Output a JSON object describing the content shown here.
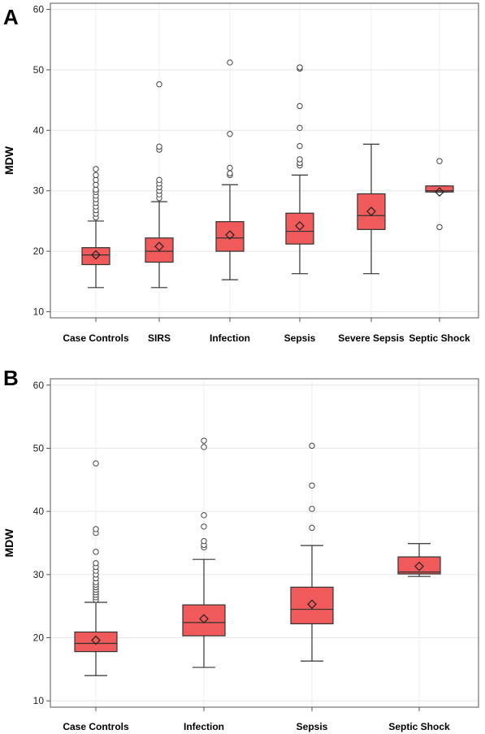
{
  "chart_data": [
    {
      "panel": "A",
      "type": "box",
      "title": "",
      "xlabel": "",
      "ylabel": "MDW",
      "ylim": [
        9,
        61
      ],
      "yticks": [
        10,
        20,
        30,
        40,
        50,
        60
      ],
      "grid": true,
      "categories": [
        "Case Controls",
        "SIRS",
        "Infection",
        "Sepsis",
        "Severe Sepsis",
        "Septic Shock"
      ],
      "colors": {
        "box_fill": "#f05a5a",
        "box_stroke": "#333333",
        "outlier": "#444444"
      },
      "boxes": [
        {
          "category": "Case Controls",
          "whisker_low": 14.0,
          "q1": 17.8,
          "median": 19.4,
          "q3": 20.6,
          "whisker_high": 25.0,
          "mean": 19.4,
          "outliers": [
            25.6,
            26.2,
            26.8,
            27.4,
            28.0,
            28.6,
            29.2,
            29.8,
            30.2,
            31.0,
            31.8,
            32.6,
            33.6
          ]
        },
        {
          "category": "SIRS",
          "whisker_low": 14.0,
          "q1": 18.2,
          "median": 20.0,
          "q3": 22.2,
          "whisker_high": 28.2,
          "mean": 20.8,
          "outliers": [
            28.8,
            29.4,
            30.0,
            30.6,
            31.2,
            31.8,
            36.8,
            37.3,
            47.6
          ]
        },
        {
          "category": "Infection",
          "whisker_low": 15.3,
          "q1": 20.0,
          "median": 22.2,
          "q3": 24.9,
          "whisker_high": 31.0,
          "mean": 22.7,
          "outliers": [
            32.6,
            32.9,
            33.8,
            39.4,
            51.2
          ]
        },
        {
          "category": "Sepsis",
          "whisker_low": 16.3,
          "q1": 21.2,
          "median": 23.3,
          "q3": 26.3,
          "whisker_high": 32.6,
          "mean": 24.2,
          "outliers": [
            34.2,
            34.6,
            35.2,
            37.4,
            40.4,
            44.0,
            50.2,
            50.4
          ]
        },
        {
          "category": "Severe Sepsis",
          "whisker_low": 16.3,
          "q1": 23.6,
          "median": 25.9,
          "q3": 29.5,
          "whisker_high": 37.7,
          "mean": 26.6,
          "outliers": []
        },
        {
          "category": "Septic Shock",
          "whisker_low": 29.8,
          "q1": 29.8,
          "median": 30.0,
          "q3": 30.8,
          "whisker_high": 30.8,
          "mean": 29.8,
          "outliers": [
            24.0,
            34.9
          ]
        }
      ]
    },
    {
      "panel": "B",
      "type": "box",
      "title": "",
      "xlabel": "",
      "ylabel": "MDW",
      "ylim": [
        9,
        61
      ],
      "yticks": [
        10,
        20,
        30,
        40,
        50,
        60
      ],
      "grid": true,
      "categories": [
        "Case Controls",
        "Infection",
        "Sepsis",
        "Septic Shock"
      ],
      "colors": {
        "box_fill": "#f05a5a",
        "box_stroke": "#333333",
        "outlier": "#444444"
      },
      "boxes": [
        {
          "category": "Case Controls",
          "whisker_low": 14.0,
          "q1": 17.8,
          "median": 19.1,
          "q3": 20.9,
          "whisker_high": 25.6,
          "mean": 19.6,
          "outliers": [
            26.0,
            26.4,
            26.8,
            27.2,
            27.6,
            28.0,
            28.4,
            28.8,
            29.4,
            30.0,
            30.6,
            31.2,
            31.8,
            33.6,
            36.6,
            37.2,
            47.6
          ]
        },
        {
          "category": "Infection",
          "whisker_low": 15.3,
          "q1": 20.3,
          "median": 22.4,
          "q3": 25.2,
          "whisker_high": 32.4,
          "mean": 23.0,
          "outliers": [
            34.3,
            34.7,
            35.3,
            37.6,
            39.4,
            50.2,
            51.2
          ]
        },
        {
          "category": "Sepsis",
          "whisker_low": 16.3,
          "q1": 22.2,
          "median": 24.5,
          "q3": 28.0,
          "whisker_high": 34.6,
          "mean": 25.3,
          "outliers": [
            37.4,
            40.4,
            44.1,
            50.4
          ]
        },
        {
          "category": "Septic Shock",
          "whisker_low": 29.7,
          "q1": 30.1,
          "median": 30.4,
          "q3": 32.8,
          "whisker_high": 34.9,
          "mean": 31.3,
          "outliers": []
        }
      ]
    }
  ]
}
